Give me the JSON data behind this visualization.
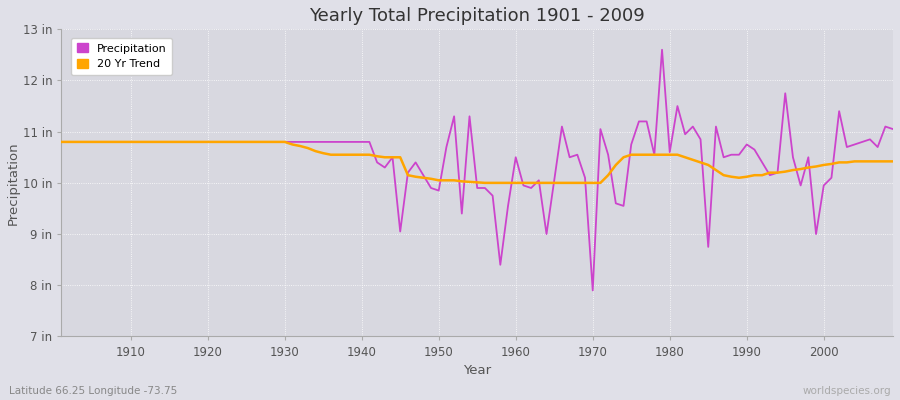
{
  "title": "Yearly Total Precipitation 1901 - 2009",
  "xlabel": "Year",
  "ylabel": "Precipitation",
  "subtitle": "Latitude 66.25 Longitude -73.75",
  "watermark": "worldspecies.org",
  "precip_color": "#CC44CC",
  "trend_color": "#FFA500",
  "bg_color": "#E0E0E8",
  "plot_bg_color": "#D8D8E0",
  "ylim": [
    7,
    13
  ],
  "yticks": [
    7,
    8,
    9,
    10,
    11,
    12,
    13
  ],
  "ytick_labels": [
    "7 in",
    "8 in",
    "9 in",
    "10 in",
    "11 in",
    "12 in",
    "13 in"
  ],
  "xlim": [
    1901,
    2009
  ],
  "xticks": [
    1910,
    1920,
    1930,
    1940,
    1950,
    1960,
    1970,
    1980,
    1990,
    2000
  ],
  "years": [
    1901,
    1902,
    1903,
    1904,
    1905,
    1906,
    1907,
    1908,
    1909,
    1910,
    1911,
    1912,
    1913,
    1914,
    1915,
    1916,
    1917,
    1918,
    1919,
    1920,
    1921,
    1922,
    1923,
    1924,
    1925,
    1926,
    1927,
    1928,
    1929,
    1930,
    1931,
    1932,
    1933,
    1934,
    1935,
    1936,
    1937,
    1938,
    1939,
    1940,
    1941,
    1942,
    1943,
    1944,
    1945,
    1946,
    1947,
    1948,
    1949,
    1950,
    1951,
    1952,
    1953,
    1954,
    1955,
    1956,
    1957,
    1958,
    1959,
    1960,
    1961,
    1962,
    1963,
    1964,
    1965,
    1966,
    1967,
    1968,
    1969,
    1970,
    1971,
    1972,
    1973,
    1974,
    1975,
    1976,
    1977,
    1978,
    1979,
    1980,
    1981,
    1982,
    1983,
    1984,
    1985,
    1986,
    1987,
    1988,
    1989,
    1990,
    1991,
    1992,
    1993,
    1994,
    1995,
    1996,
    1997,
    1998,
    1999,
    2000,
    2001,
    2002,
    2003,
    2004,
    2005,
    2006,
    2007,
    2008,
    2009
  ],
  "precip": [
    10.8,
    10.8,
    10.8,
    10.8,
    10.8,
    10.8,
    10.8,
    10.8,
    10.8,
    10.8,
    10.8,
    10.8,
    10.8,
    10.8,
    10.8,
    10.8,
    10.8,
    10.8,
    10.8,
    10.8,
    10.8,
    10.8,
    10.8,
    10.8,
    10.8,
    10.8,
    10.8,
    10.8,
    10.8,
    10.8,
    10.8,
    10.8,
    10.8,
    10.8,
    10.8,
    10.8,
    10.8,
    10.8,
    10.8,
    10.8,
    10.8,
    10.4,
    10.3,
    10.5,
    9.05,
    10.2,
    10.4,
    10.15,
    9.9,
    9.85,
    10.7,
    11.3,
    9.4,
    11.3,
    9.9,
    9.9,
    9.75,
    8.4,
    9.55,
    10.5,
    9.95,
    9.9,
    10.05,
    9.0,
    10.05,
    11.1,
    10.5,
    10.55,
    10.1,
    7.9,
    11.05,
    10.55,
    9.6,
    9.55,
    10.75,
    11.2,
    11.2,
    10.55,
    12.6,
    10.6,
    11.5,
    10.95,
    11.1,
    10.85,
    8.75,
    11.1,
    10.5,
    10.55,
    10.55,
    10.75,
    10.65,
    10.4,
    10.15,
    10.2,
    11.75,
    10.5,
    9.95,
    10.5,
    9.0,
    9.95,
    10.1,
    11.4,
    10.7,
    10.75,
    10.8,
    10.85,
    10.7,
    11.1,
    11.05
  ],
  "trend": [
    10.8,
    10.8,
    10.8,
    10.8,
    10.8,
    10.8,
    10.8,
    10.8,
    10.8,
    10.8,
    10.8,
    10.8,
    10.8,
    10.8,
    10.8,
    10.8,
    10.8,
    10.8,
    10.8,
    10.8,
    10.8,
    10.8,
    10.8,
    10.8,
    10.8,
    10.8,
    10.8,
    10.8,
    10.8,
    10.8,
    10.75,
    10.72,
    10.68,
    10.62,
    10.58,
    10.55,
    10.55,
    10.55,
    10.55,
    10.55,
    10.55,
    10.52,
    10.5,
    10.5,
    10.5,
    10.15,
    10.12,
    10.1,
    10.08,
    10.05,
    10.05,
    10.05,
    10.03,
    10.02,
    10.01,
    10.0,
    10.0,
    10.0,
    10.0,
    10.0,
    10.0,
    10.0,
    10.0,
    10.0,
    10.0,
    10.0,
    10.0,
    10.0,
    10.0,
    10.0,
    10.0,
    10.15,
    10.35,
    10.5,
    10.55,
    10.55,
    10.55,
    10.55,
    10.55,
    10.55,
    10.55,
    10.5,
    10.45,
    10.4,
    10.35,
    10.25,
    10.15,
    10.12,
    10.1,
    10.12,
    10.15,
    10.15,
    10.2,
    10.2,
    10.22,
    10.25,
    10.27,
    10.3,
    10.32,
    10.35,
    10.37,
    10.4,
    10.4,
    10.42,
    10.42,
    10.42,
    10.42,
    10.42,
    10.42
  ]
}
